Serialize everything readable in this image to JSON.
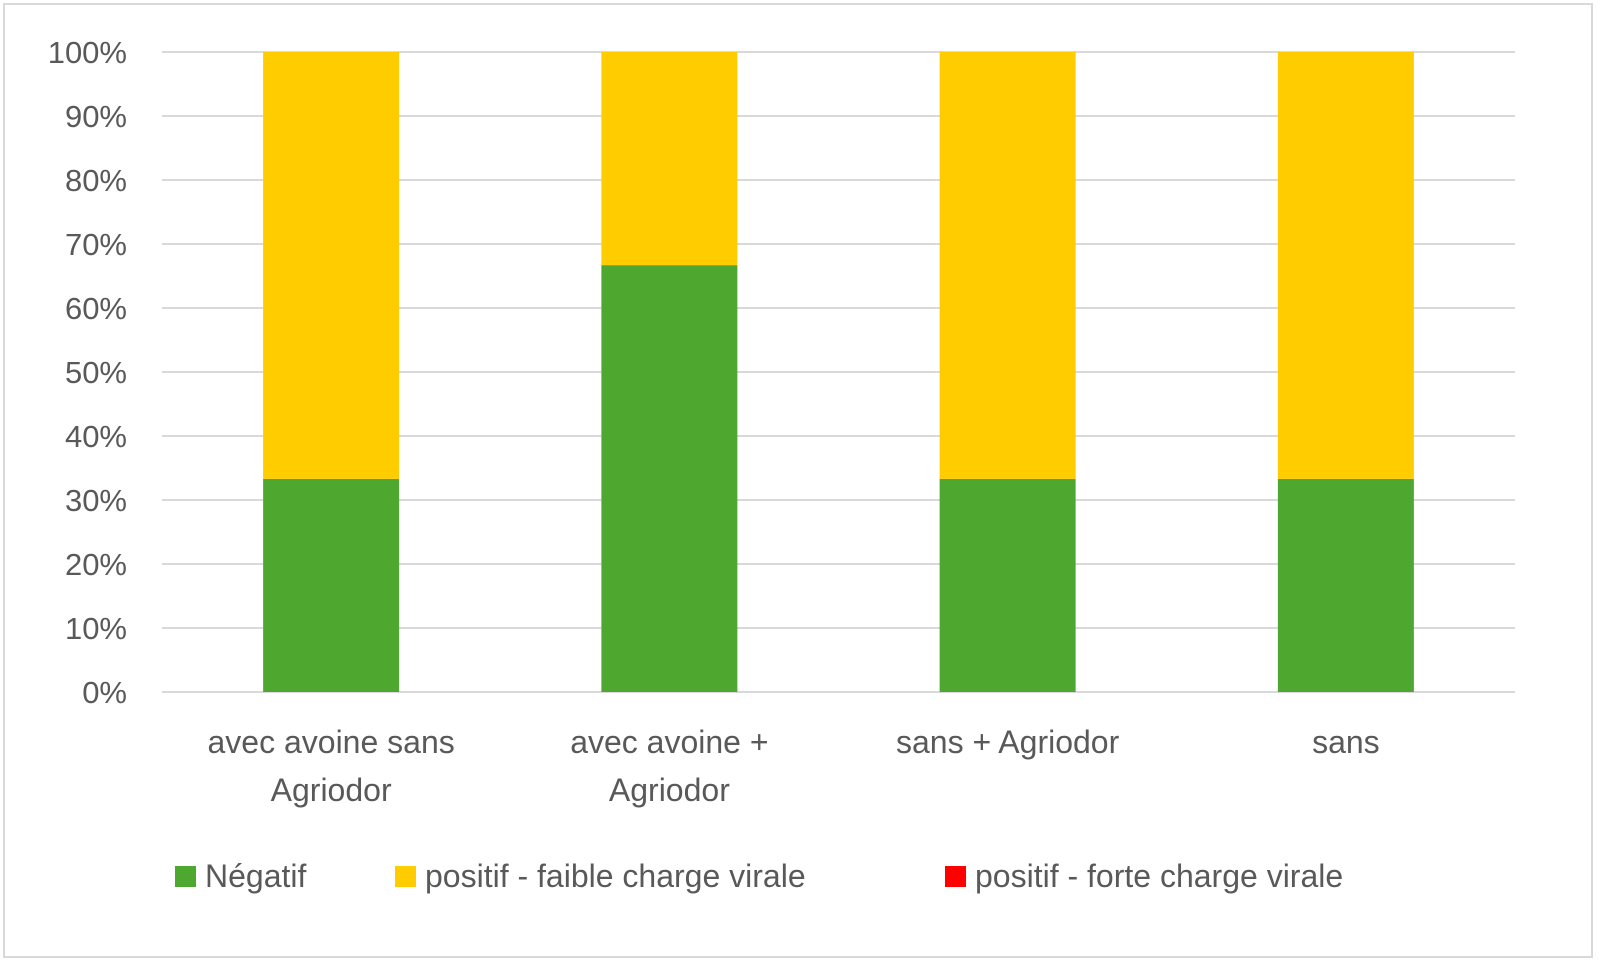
{
  "chart_data": {
    "type": "bar",
    "stacked": true,
    "percent": true,
    "categories": [
      [
        "avec avoine sans",
        "Agriodor"
      ],
      [
        "avec avoine +",
        "Agriodor"
      ],
      [
        "sans + Agriodor"
      ],
      [
        "sans"
      ]
    ],
    "series": [
      {
        "name": "Négatif",
        "color": "#4ea72e",
        "values": [
          33.3,
          66.7,
          33.3,
          33.3
        ]
      },
      {
        "name": "positif - faible charge virale",
        "color": "#ffcc00",
        "values": [
          66.7,
          33.3,
          66.7,
          66.7
        ]
      },
      {
        "name": "positif - forte charge virale",
        "color": "#ff0000",
        "values": [
          0,
          0,
          0,
          0
        ]
      }
    ],
    "ylim": [
      0,
      100
    ],
    "yticks": [
      "0%",
      "10%",
      "20%",
      "30%",
      "40%",
      "50%",
      "60%",
      "70%",
      "80%",
      "90%",
      "100%"
    ],
    "grid": true,
    "legend_position": "bottom",
    "title": "",
    "xlabel": "",
    "ylabel": ""
  }
}
